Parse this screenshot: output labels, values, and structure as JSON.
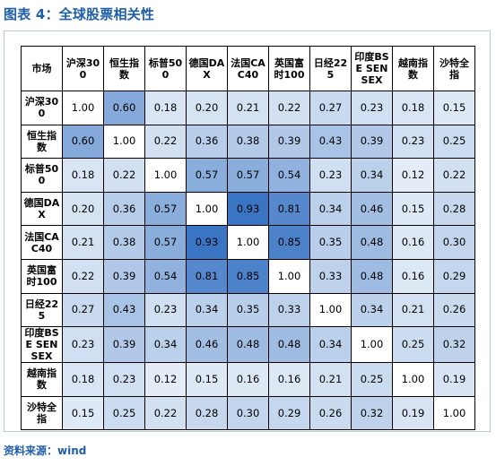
{
  "title": "图表 4：全球股票相关性",
  "source": "资料来源：wind",
  "chart_data": {
    "type": "heatmap",
    "corner_label": "市场",
    "x_labels": [
      "沪深300",
      "恒生指数",
      "标普500",
      "德国DAX",
      "法国CAC40",
      "英国富时100",
      "日经225",
      "印度BSE SENSEX",
      "越南指数",
      "沙特全指"
    ],
    "y_labels": [
      "沪深300",
      "恒生指数",
      "标普500",
      "德国DAX",
      "法国CAC40",
      "英国富时100",
      "日经225",
      "印度BSE SENSEX",
      "越南指数",
      "沙特全指"
    ],
    "values": [
      [
        1.0,
        0.6,
        0.18,
        0.2,
        0.21,
        0.22,
        0.27,
        0.23,
        0.18,
        0.15
      ],
      [
        0.6,
        1.0,
        0.22,
        0.36,
        0.38,
        0.39,
        0.43,
        0.39,
        0.23,
        0.25
      ],
      [
        0.18,
        0.22,
        1.0,
        0.57,
        0.57,
        0.54,
        0.23,
        0.34,
        0.12,
        0.22
      ],
      [
        0.2,
        0.36,
        0.57,
        1.0,
        0.93,
        0.81,
        0.34,
        0.46,
        0.15,
        0.28
      ],
      [
        0.21,
        0.38,
        0.57,
        0.93,
        1.0,
        0.85,
        0.35,
        0.48,
        0.16,
        0.3
      ],
      [
        0.22,
        0.39,
        0.54,
        0.81,
        0.85,
        1.0,
        0.33,
        0.48,
        0.16,
        0.29
      ],
      [
        0.27,
        0.43,
        0.23,
        0.34,
        0.35,
        0.33,
        1.0,
        0.34,
        0.21,
        0.26
      ],
      [
        0.23,
        0.39,
        0.34,
        0.46,
        0.48,
        0.48,
        0.34,
        1.0,
        0.25,
        0.32
      ],
      [
        0.18,
        0.23,
        0.12,
        0.15,
        0.16,
        0.16,
        0.21,
        0.25,
        1.0,
        0.19
      ],
      [
        0.15,
        0.25,
        0.22,
        0.28,
        0.3,
        0.29,
        0.26,
        0.32,
        0.19,
        1.0
      ]
    ],
    "value_format": "0.00",
    "color_scale": {
      "low": "#e3ecf7",
      "high": "#3a75c4",
      "diagonal": "#ffffff"
    }
  }
}
